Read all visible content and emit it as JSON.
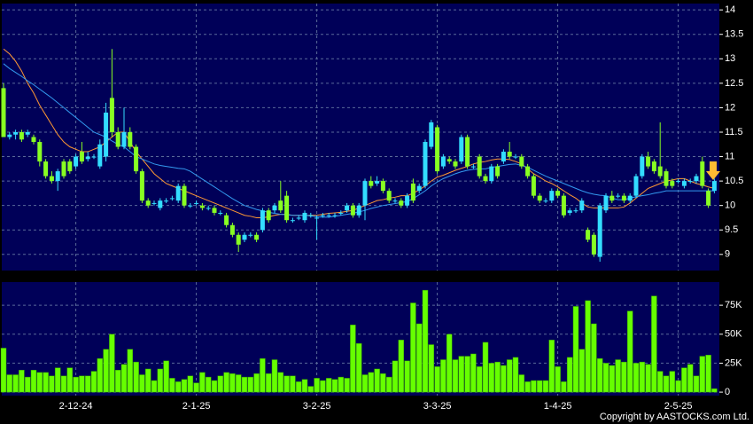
{
  "chart_data": [
    {
      "type": "candlestick",
      "up_color": "#33ddff",
      "down_color": "#88ff22",
      "ylim": [
        8.67,
        14.13
      ],
      "yticks": [
        9,
        9.5,
        10,
        10.5,
        11,
        11.5,
        12,
        12.5,
        13,
        13.5,
        14
      ],
      "grid": true,
      "open": [
        12.4,
        11.4,
        11.45,
        11.5,
        11.45,
        11.4,
        11.3,
        10.9,
        10.6,
        10.5,
        10.9,
        10.9,
        10.8,
        11.1,
        10.95,
        11.0,
        10.8,
        11.0,
        12.2,
        11.5,
        11.2,
        11.5,
        11.2,
        10.7,
        10.1,
        10.05,
        9.95,
        10.1,
        10.15,
        10.1,
        10.4,
        10.0,
        10.05,
        10.0,
        9.95,
        9.95,
        9.85,
        9.8,
        9.6,
        9.4,
        9.3,
        9.4,
        9.4,
        9.5,
        9.9,
        9.9,
        10.1,
        10.2,
        9.7,
        9.75,
        9.7,
        9.8,
        9.75,
        9.8,
        9.8,
        9.8,
        9.85,
        9.9,
        10.0,
        9.8,
        10.0,
        10.5,
        10.45,
        10.5,
        10.3,
        10.1,
        10.1,
        10.0,
        10.45,
        10.3,
        10.4,
        11.2,
        11.6,
        10.8,
        10.95,
        10.9,
        10.9,
        11.4,
        10.8,
        11.0,
        10.6,
        10.5,
        10.8,
        10.9,
        11.1,
        11.0,
        11.0,
        10.8,
        10.6,
        10.2,
        10.1,
        10.1,
        10.3,
        10.2,
        9.85,
        9.9,
        9.9,
        9.5,
        9.4,
        8.95,
        9.9,
        10.2,
        10.2,
        10.2,
        10.1,
        10.2,
        10.6,
        11.0,
        10.9,
        10.8,
        10.7,
        10.5,
        10.5,
        10.4,
        10.5,
        10.5,
        10.9,
        10.3,
        10.3
      ],
      "high": [
        12.5,
        11.5,
        11.55,
        11.55,
        11.55,
        11.45,
        11.35,
        10.95,
        10.7,
        10.75,
        10.95,
        10.95,
        11.05,
        11.3,
        11.1,
        11.05,
        11.35,
        12.1,
        13.2,
        11.6,
        12.0,
        11.6,
        11.25,
        10.75,
        10.15,
        10.1,
        10.15,
        10.15,
        10.2,
        10.45,
        10.45,
        10.05,
        10.1,
        10.05,
        10.0,
        10.0,
        9.9,
        9.85,
        9.65,
        9.45,
        9.45,
        9.45,
        9.45,
        9.95,
        9.95,
        10.05,
        10.5,
        10.3,
        9.75,
        9.8,
        9.9,
        9.85,
        9.8,
        9.85,
        9.85,
        9.85,
        9.9,
        10.05,
        10.05,
        10.05,
        10.55,
        10.6,
        10.6,
        10.55,
        10.35,
        10.15,
        10.15,
        10.25,
        10.55,
        10.45,
        11.35,
        11.75,
        11.65,
        11.05,
        11.0,
        10.95,
        11.45,
        11.45,
        10.85,
        11.05,
        10.65,
        10.85,
        10.85,
        11.15,
        11.3,
        11.05,
        11.05,
        10.85,
        10.65,
        10.25,
        10.15,
        10.35,
        10.35,
        10.25,
        9.95,
        9.95,
        10.15,
        9.55,
        9.45,
        10.05,
        10.25,
        10.3,
        10.25,
        10.25,
        10.25,
        10.65,
        11.05,
        11.1,
        10.95,
        11.7,
        10.75,
        10.55,
        10.55,
        10.55,
        10.55,
        10.65,
        11.0,
        10.35,
        10.55
      ],
      "low": [
        11.4,
        11.35,
        11.35,
        11.3,
        11.4,
        11.25,
        10.8,
        10.55,
        10.45,
        10.3,
        10.55,
        10.65,
        10.75,
        10.85,
        10.9,
        10.95,
        10.75,
        10.9,
        11.4,
        11.15,
        11.15,
        11.15,
        10.65,
        10.05,
        9.95,
        10.0,
        9.9,
        10.05,
        10.1,
        10.05,
        9.95,
        9.95,
        10.0,
        9.9,
        9.9,
        9.8,
        9.8,
        9.55,
        9.35,
        9.05,
        9.25,
        9.35,
        9.25,
        9.45,
        9.65,
        9.85,
        9.85,
        9.65,
        9.65,
        9.7,
        9.65,
        9.75,
        9.3,
        9.75,
        9.75,
        9.75,
        9.8,
        9.85,
        9.75,
        9.75,
        9.7,
        10.35,
        10.4,
        10.25,
        10.05,
        10.05,
        9.95,
        9.95,
        10.05,
        10.25,
        10.35,
        11.15,
        10.65,
        10.75,
        10.85,
        10.75,
        10.85,
        10.75,
        10.75,
        10.55,
        10.45,
        10.45,
        10.55,
        10.85,
        10.95,
        10.95,
        10.75,
        10.55,
        10.15,
        10.05,
        10.05,
        10.05,
        10.15,
        9.75,
        9.8,
        9.85,
        9.85,
        9.25,
        8.95,
        8.85,
        9.85,
        10.05,
        10.15,
        10.05,
        10.05,
        10.15,
        10.55,
        10.75,
        10.65,
        10.55,
        10.35,
        10.35,
        10.45,
        10.35,
        10.45,
        10.45,
        10.35,
        9.95,
        10.25
      ],
      "close": [
        11.4,
        11.45,
        11.5,
        11.35,
        11.5,
        11.3,
        10.9,
        10.6,
        10.5,
        10.7,
        10.6,
        10.7,
        11.0,
        10.9,
        11.0,
        11.0,
        11.25,
        11.9,
        11.5,
        11.2,
        11.5,
        11.2,
        10.7,
        10.1,
        10.0,
        10.05,
        10.1,
        10.1,
        10.15,
        10.4,
        10.0,
        10.0,
        10.05,
        9.95,
        9.95,
        9.85,
        9.85,
        9.6,
        9.4,
        9.2,
        9.4,
        9.4,
        9.3,
        9.9,
        9.7,
        10.0,
        9.9,
        9.7,
        9.7,
        9.75,
        9.85,
        9.8,
        9.75,
        9.8,
        9.8,
        9.8,
        9.85,
        10.0,
        9.8,
        10.0,
        10.5,
        10.4,
        10.5,
        10.3,
        10.1,
        10.1,
        10.0,
        10.2,
        10.1,
        10.4,
        11.3,
        11.7,
        10.7,
        11.0,
        10.9,
        10.8,
        11.4,
        10.8,
        10.8,
        10.6,
        10.5,
        10.8,
        10.6,
        11.1,
        11.0,
        11.0,
        10.8,
        10.6,
        10.2,
        10.1,
        10.1,
        10.3,
        10.2,
        9.8,
        9.9,
        9.9,
        10.1,
        9.3,
        9.0,
        10.0,
        10.2,
        10.1,
        10.2,
        10.1,
        10.2,
        10.6,
        11.0,
        10.8,
        10.7,
        10.6,
        10.4,
        10.4,
        10.5,
        10.5,
        10.5,
        10.6,
        10.4,
        10.0,
        10.5
      ],
      "series": [
        {
          "color": "#ff9933",
          "values": [
            13.2,
            13.1,
            12.95,
            12.75,
            12.5,
            12.3,
            12.05,
            11.85,
            11.65,
            11.45,
            11.3,
            11.2,
            11.15,
            11.1,
            11.1,
            11.15,
            11.2,
            11.3,
            11.4,
            11.5,
            11.5,
            11.3,
            11.1,
            10.95,
            10.8,
            10.65,
            10.55,
            10.45,
            10.4,
            10.35,
            10.3,
            10.25,
            10.2,
            10.15,
            10.1,
            10.05,
            10.0,
            9.95,
            9.9,
            9.85,
            9.8,
            9.78,
            9.75,
            9.75,
            9.77,
            9.8,
            9.82,
            9.82,
            9.8,
            9.8,
            9.8,
            9.8,
            9.8,
            9.82,
            9.84,
            9.85,
            9.86,
            9.88,
            9.9,
            9.95,
            10.0,
            10.05,
            10.1,
            10.12,
            10.15,
            10.17,
            10.2,
            10.2,
            10.25,
            10.32,
            10.4,
            10.5,
            10.58,
            10.62,
            10.67,
            10.72,
            10.76,
            10.8,
            10.85,
            10.88,
            10.9,
            10.93,
            10.95,
            10.95,
            10.94,
            10.9,
            10.85,
            10.75,
            10.65,
            10.58,
            10.5,
            10.45,
            10.38,
            10.3,
            10.22,
            10.15,
            10.05,
            9.97,
            9.95,
            9.95,
            9.95,
            9.95,
            9.95,
            9.97,
            10.05,
            10.15,
            10.25,
            10.35,
            10.4,
            10.45,
            10.5,
            10.52,
            10.55,
            10.55,
            10.5,
            10.45,
            10.42,
            10.38,
            10.35
          ]
        },
        {
          "color": "#3399ee",
          "values": [
            12.9,
            12.8,
            12.72,
            12.64,
            12.55,
            12.47,
            12.38,
            12.29,
            12.2,
            12.1,
            12.0,
            11.9,
            11.8,
            11.7,
            11.6,
            11.5,
            11.45,
            11.4,
            11.32,
            11.25,
            11.2,
            11.1,
            11.0,
            10.95,
            10.9,
            10.85,
            10.82,
            10.8,
            10.78,
            10.76,
            10.75,
            10.7,
            10.62,
            10.54,
            10.46,
            10.38,
            10.3,
            10.22,
            10.14,
            10.07,
            10.0,
            9.96,
            9.92,
            9.89,
            9.86,
            9.84,
            9.82,
            9.81,
            9.8,
            9.8,
            9.8,
            9.79,
            9.77,
            9.76,
            9.76,
            9.78,
            9.8,
            9.82,
            9.84,
            9.87,
            9.9,
            9.94,
            9.97,
            10.0,
            10.02,
            10.04,
            10.06,
            10.08,
            10.14,
            10.22,
            10.3,
            10.4,
            10.48,
            10.55,
            10.6,
            10.65,
            10.69,
            10.72,
            10.74,
            10.75,
            10.75,
            10.78,
            10.8,
            10.82,
            10.84,
            10.85,
            10.82,
            10.78,
            10.72,
            10.66,
            10.6,
            10.55,
            10.5,
            10.45,
            10.4,
            10.35,
            10.3,
            10.26,
            10.23,
            10.21,
            10.2,
            10.15,
            10.12,
            10.12,
            10.15,
            10.18,
            10.2,
            10.22,
            10.25,
            10.27,
            10.3,
            10.3,
            10.3,
            10.3,
            10.3,
            10.3,
            10.3,
            10.3,
            10.3
          ]
        }
      ]
    },
    {
      "type": "bar",
      "color": "#66ff00",
      "ylim": [
        -3000,
        95000
      ],
      "yticks": [
        0,
        {
          "value": 25000,
          "label": "25K"
        },
        {
          "value": 50000,
          "label": "50K"
        },
        {
          "value": 75000,
          "label": "75K"
        }
      ],
      "grid": true,
      "categories": [
        null,
        null,
        null,
        null,
        null,
        null,
        null,
        null,
        null,
        null,
        null,
        null,
        "2-12-24",
        null,
        null,
        null,
        null,
        null,
        null,
        null,
        null,
        null,
        null,
        null,
        null,
        null,
        null,
        null,
        null,
        null,
        null,
        null,
        "2-1-25",
        null,
        null,
        null,
        null,
        null,
        null,
        null,
        null,
        null,
        null,
        null,
        null,
        null,
        null,
        null,
        null,
        null,
        null,
        null,
        "3-2-25",
        null,
        null,
        null,
        null,
        null,
        null,
        null,
        null,
        null,
        null,
        null,
        null,
        null,
        null,
        null,
        null,
        null,
        null,
        null,
        "3-3-25",
        null,
        null,
        null,
        null,
        null,
        null,
        null,
        null,
        null,
        null,
        null,
        null,
        null,
        null,
        null,
        null,
        null,
        null,
        null,
        "1-4-25",
        null,
        null,
        null,
        null,
        null,
        null,
        null,
        null,
        null,
        null,
        null,
        null,
        null,
        null,
        null,
        null,
        null,
        null,
        null,
        "2-5-25",
        null,
        null,
        null,
        null,
        null,
        null
      ],
      "values": [
        38000,
        15000,
        15000,
        19000,
        13000,
        19000,
        17000,
        17000,
        14000,
        21000,
        14000,
        21000,
        13000,
        14000,
        14000,
        18000,
        29000,
        37000,
        50000,
        19000,
        24000,
        37000,
        26000,
        15000,
        20000,
        10000,
        20000,
        27000,
        12000,
        9000,
        11000,
        14000,
        8000,
        17000,
        13000,
        10000,
        14000,
        17000,
        16000,
        15000,
        13000,
        13000,
        16000,
        29000,
        16000,
        28000,
        17000,
        14000,
        14000,
        9000,
        11000,
        5000,
        12000,
        10000,
        12000,
        11000,
        13000,
        12000,
        58000,
        42000,
        15000,
        17000,
        20000,
        16000,
        13000,
        27000,
        45000,
        27000,
        77000,
        59000,
        88000,
        41000,
        22000,
        28000,
        50000,
        28000,
        31000,
        31000,
        33000,
        22000,
        43000,
        25000,
        26000,
        23000,
        28000,
        30000,
        15000,
        9000,
        10000,
        10000,
        10000,
        45000,
        22000,
        9000,
        30000,
        74000,
        37000,
        79000,
        59000,
        29000,
        25000,
        23000,
        28000,
        26000,
        70000,
        25000,
        26000,
        24000,
        83000,
        18000,
        14000,
        18000,
        10000,
        21000,
        24000,
        14000,
        31000,
        32000,
        3000
      ]
    }
  ],
  "copyright": "Copyright by AASTOCKS.com Ltd."
}
